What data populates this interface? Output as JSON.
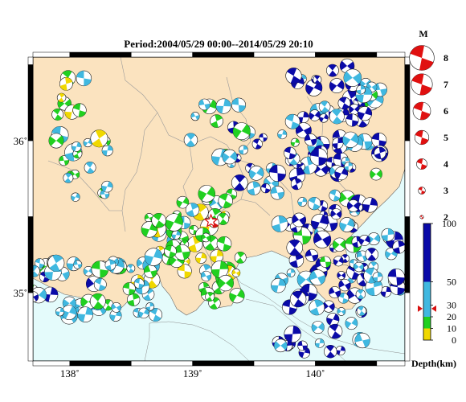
{
  "title": "Period:2004/05/29 00:00--2014/05/29 20:10",
  "map": {
    "lon_range": [
      137.7,
      140.73
    ],
    "lat_range": [
      34.55,
      36.55
    ],
    "x_ticks": [
      {
        "value": 138,
        "label": "138˚"
      },
      {
        "value": 139,
        "label": "139˚"
      },
      {
        "value": 140,
        "label": "140˚"
      }
    ],
    "y_ticks": [
      {
        "value": 36,
        "label": "36˚"
      },
      {
        "value": 35,
        "label": "35˚"
      }
    ],
    "land_color": "#fbe3bf",
    "sea_color": "#e4fbfb",
    "mainshock": {
      "lon": 139.15,
      "lat": 35.47
    }
  },
  "magnitude_legend": {
    "title": "M",
    "items": [
      {
        "label": "8",
        "m": 8
      },
      {
        "label": "7",
        "m": 7
      },
      {
        "label": "6",
        "m": 6
      },
      {
        "label": "5",
        "m": 5
      },
      {
        "label": "4",
        "m": 4
      },
      {
        "label": "3",
        "m": 3
      },
      {
        "label": "2",
        "m": 2
      }
    ]
  },
  "depth_legend": {
    "title": "Depth(km)",
    "max": 100,
    "ticks": [
      {
        "value": 100,
        "label": "100"
      },
      {
        "value": 50,
        "label": "50"
      },
      {
        "value": 30,
        "label": "30"
      },
      {
        "value": 20,
        "label": "20"
      },
      {
        "value": 10,
        "label": "10"
      },
      {
        "value": 0,
        "label": "0"
      }
    ],
    "bands": [
      {
        "from": 0,
        "to": 10,
        "color": "#f0d800"
      },
      {
        "from": 10,
        "to": 20,
        "color": "#20d020"
      },
      {
        "from": 20,
        "to": 50,
        "color": "#40b8e0"
      },
      {
        "from": 50,
        "to": 100,
        "color": "#0a0aa8"
      }
    ],
    "marker_value": 27
  }
}
